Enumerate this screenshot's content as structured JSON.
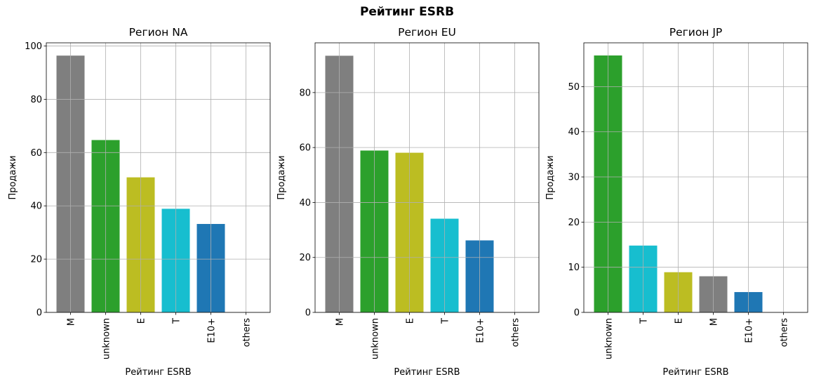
{
  "suptitle": "Рейтинг ESRB",
  "chart_data": [
    {
      "type": "bar",
      "title": "Регион NA",
      "xlabel": "Рейтинг ESRB",
      "ylabel": "Продажи",
      "categories": [
        "M",
        "unknown",
        "E",
        "T",
        "E10+",
        "others"
      ],
      "values": [
        96.4,
        64.7,
        50.7,
        38.9,
        33.2,
        0
      ],
      "colors": [
        "#7f7f7f",
        "#2ca02c",
        "#bcbd22",
        "#17becf",
        "#1f77b4",
        "#1f77b4"
      ],
      "yticks": [
        0,
        20,
        40,
        60,
        80,
        100
      ],
      "ylim": [
        0,
        101.2
      ],
      "grid": true
    },
    {
      "type": "bar",
      "title": "Регион EU",
      "xlabel": "Рейтинг ESRB",
      "ylabel": "Продажи",
      "categories": [
        "M",
        "unknown",
        "E",
        "T",
        "E10+",
        "others"
      ],
      "values": [
        93.4,
        58.9,
        58.1,
        34.1,
        26.2,
        0
      ],
      "colors": [
        "#7f7f7f",
        "#2ca02c",
        "#bcbd22",
        "#17becf",
        "#1f77b4",
        "#1f77b4"
      ],
      "yticks": [
        0,
        20,
        40,
        60,
        80
      ],
      "ylim": [
        0,
        98.1
      ],
      "grid": true
    },
    {
      "type": "bar",
      "title": "Регион JP",
      "xlabel": "Рейтинг ESRB",
      "ylabel": "Продажи",
      "categories": [
        "unknown",
        "T",
        "E",
        "M",
        "E10+",
        "others"
      ],
      "values": [
        56.9,
        14.8,
        8.9,
        8.0,
        4.5,
        0
      ],
      "colors": [
        "#2ca02c",
        "#17becf",
        "#bcbd22",
        "#7f7f7f",
        "#1f77b4",
        "#1f77b4"
      ],
      "yticks": [
        0,
        10,
        20,
        30,
        40,
        50
      ],
      "ylim": [
        0,
        59.7
      ],
      "grid": true
    }
  ]
}
